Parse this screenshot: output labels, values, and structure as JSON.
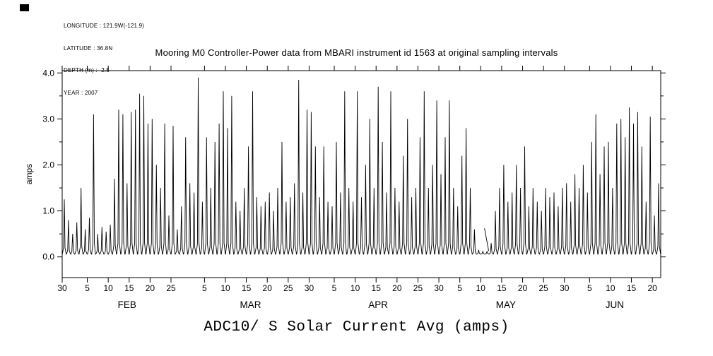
{
  "page": {
    "background": "#ffffff",
    "ink": "#000000"
  },
  "header": {
    "meta_lines": [
      "LONGITUDE : 121.9W(-121.9)",
      "LATITUDE : 36.8N",
      "DEPTH (m) : -2.5",
      "YEAR : 2007"
    ],
    "title": "Mooring M0 Controller-Power data from MBARI instrument id 1563 at original sampling intervals"
  },
  "caption": "ADC10/ S Solar Current Avg (amps)",
  "chart_data": {
    "type": "line",
    "title": "Mooring M0 Controller-Power data from MBARI instrument id 1563 at original sampling intervals",
    "ylabel": "amps",
    "ylim": [
      -0.45,
      4.05
    ],
    "grid": false,
    "legend": "none",
    "y_major_ticks": [
      {
        "value": 0.0,
        "label": "0.0"
      },
      {
        "value": 1.0,
        "label": "1.0"
      },
      {
        "value": 2.0,
        "label": "2.0"
      },
      {
        "value": 3.0,
        "label": "3.0"
      },
      {
        "value": 4.0,
        "label": "4.0"
      }
    ],
    "y_minor_ticks": [
      0.5,
      1.5,
      2.5,
      3.5
    ],
    "x_axis": {
      "unit": "day",
      "start": "2007-01-30",
      "end": "2007-06-21",
      "total_days": 143
    },
    "x_ticks": [
      {
        "day": 0,
        "label": "30"
      },
      {
        "day": 6,
        "label": "5"
      },
      {
        "day": 11,
        "label": "10"
      },
      {
        "day": 16,
        "label": "15"
      },
      {
        "day": 21,
        "label": "20"
      },
      {
        "day": 26,
        "label": "25"
      },
      {
        "day": 34,
        "label": "5"
      },
      {
        "day": 39,
        "label": "10"
      },
      {
        "day": 44,
        "label": "15"
      },
      {
        "day": 49,
        "label": "20"
      },
      {
        "day": 54,
        "label": "25"
      },
      {
        "day": 59,
        "label": "30"
      },
      {
        "day": 65,
        "label": "5"
      },
      {
        "day": 70,
        "label": "10"
      },
      {
        "day": 75,
        "label": "15"
      },
      {
        "day": 80,
        "label": "20"
      },
      {
        "day": 85,
        "label": "25"
      },
      {
        "day": 90,
        "label": "30"
      },
      {
        "day": 95,
        "label": "5"
      },
      {
        "day": 100,
        "label": "10"
      },
      {
        "day": 105,
        "label": "15"
      },
      {
        "day": 110,
        "label": "20"
      },
      {
        "day": 115,
        "label": "25"
      },
      {
        "day": 120,
        "label": "30"
      },
      {
        "day": 126,
        "label": "5"
      },
      {
        "day": 131,
        "label": "10"
      },
      {
        "day": 136,
        "label": "15"
      },
      {
        "day": 141,
        "label": "20"
      }
    ],
    "month_labels": [
      {
        "label": "FEB",
        "day": 15.5
      },
      {
        "label": "MAR",
        "day": 45
      },
      {
        "label": "APR",
        "day": 75.5
      },
      {
        "label": "MAY",
        "day": 106
      },
      {
        "label": "JUN",
        "day": 132
      }
    ],
    "series": [
      {
        "name": "ADC10/ S Solar Current Avg (amps)",
        "color": "#000000",
        "baseline_amps": 0.06,
        "daily_peak_amps": [
          1.25,
          0.8,
          0.5,
          0.75,
          1.5,
          0.6,
          0.85,
          3.1,
          0.5,
          0.65,
          0.55,
          0.7,
          1.7,
          3.2,
          3.1,
          1.6,
          3.15,
          3.2,
          3.55,
          3.5,
          2.9,
          3.0,
          2.0,
          1.5,
          2.9,
          0.9,
          2.85,
          0.6,
          1.1,
          2.6,
          1.6,
          1.4,
          3.9,
          1.2,
          2.6,
          1.5,
          2.5,
          2.9,
          3.6,
          2.8,
          3.5,
          1.2,
          1.0,
          1.5,
          2.4,
          3.6,
          1.3,
          1.1,
          1.2,
          1.4,
          1.0,
          1.5,
          2.5,
          1.2,
          1.3,
          1.6,
          3.85,
          1.4,
          3.2,
          3.15,
          2.4,
          1.3,
          2.4,
          1.2,
          1.1,
          2.5,
          1.4,
          3.6,
          1.5,
          1.2,
          3.6,
          1.3,
          2.0,
          3.0,
          1.5,
          3.7,
          2.5,
          1.4,
          3.6,
          1.5,
          1.2,
          2.2,
          3.0,
          1.3,
          1.5,
          2.6,
          3.6,
          1.5,
          2.0,
          3.4,
          1.8,
          2.6,
          3.4,
          1.5,
          1.1,
          2.2,
          2.8,
          1.5,
          0.6,
          0.15,
          0.12,
          0.12,
          0.3,
          1.0,
          1.5,
          2.0,
          1.2,
          1.4,
          2.0,
          1.5,
          2.4,
          1.1,
          1.5,
          1.2,
          1.0,
          1.5,
          1.3,
          1.4,
          1.1,
          1.5,
          1.6,
          1.2,
          1.8,
          1.5,
          2.0,
          1.4,
          2.5,
          3.1,
          1.8,
          2.4,
          2.5,
          1.5,
          2.9,
          3.0,
          2.6,
          3.25,
          2.9,
          3.15,
          2.4,
          1.2,
          3.05,
          0.9,
          1.6
        ]
      }
    ],
    "annotation": {
      "kind": "pointer-mark",
      "x1_day": 100.9,
      "y1_amps": 0.62,
      "x2_day": 101.9,
      "y2_amps": 0.13
    }
  }
}
